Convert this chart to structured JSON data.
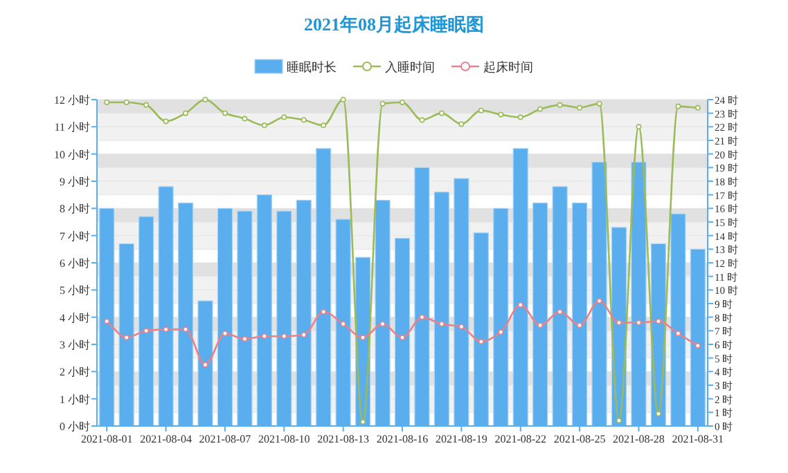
{
  "chart_data": {
    "type": "bar",
    "title": "2021年08月起床睡眠图",
    "categories": [
      "2021-08-01",
      null,
      null,
      "2021-08-04",
      null,
      null,
      "2021-08-07",
      null,
      null,
      "2021-08-10",
      null,
      null,
      "2021-08-13",
      null,
      null,
      "2021-08-16",
      null,
      null,
      "2021-08-19",
      null,
      null,
      "2021-08-22",
      null,
      null,
      "2021-08-25",
      null,
      null,
      "2021-08-28",
      null,
      null,
      "2021-08-31"
    ],
    "series": [
      {
        "name": "睡眠时长",
        "color": "#5aaeed",
        "values": [
          8.0,
          6.7,
          7.7,
          8.8,
          8.2,
          4.6,
          8.0,
          7.9,
          8.5,
          7.9,
          8.3,
          10.2,
          7.6,
          6.2,
          8.3,
          6.9,
          9.5,
          8.6,
          9.1,
          7.1,
          8.0,
          10.2,
          8.2,
          8.8,
          8.2,
          9.7,
          7.3,
          9.7,
          6.7,
          7.8,
          6.5
        ]
      },
      {
        "name": "入睡时间",
        "type": "line",
        "axis": "y2",
        "color": "#9bbb59",
        "values": [
          23.8,
          23.8,
          23.6,
          22.4,
          23.0,
          24.0,
          23.0,
          22.6,
          22.1,
          22.7,
          22.5,
          22.1,
          24.0,
          0.3,
          23.7,
          23.8,
          22.5,
          23.0,
          22.2,
          23.2,
          22.9,
          22.7,
          23.3,
          23.6,
          23.4,
          23.7,
          0.4,
          22.0,
          0.9,
          23.5,
          23.4
        ]
      },
      {
        "name": "起床时间",
        "type": "line",
        "axis": "y2",
        "color": "#e8828a",
        "values": [
          7.7,
          6.5,
          7.0,
          7.1,
          7.1,
          4.5,
          6.8,
          6.4,
          6.6,
          6.6,
          6.7,
          8.4,
          7.5,
          6.5,
          7.5,
          6.5,
          8.0,
          7.5,
          7.3,
          6.2,
          6.9,
          8.9,
          7.4,
          8.4,
          7.4,
          9.2,
          7.6,
          7.6,
          7.7,
          6.8,
          5.9
        ]
      }
    ],
    "ylim": [
      0,
      12
    ],
    "yticks": [
      {
        "value": 0,
        "label": "0 小时"
      },
      {
        "value": 1,
        "label": "1 小时"
      },
      {
        "value": 2,
        "label": "2 小时"
      },
      {
        "value": 3,
        "label": "3 小时"
      },
      {
        "value": 4,
        "label": "4 小时"
      },
      {
        "value": 5,
        "label": "5 小时"
      },
      {
        "value": 6,
        "label": "6 小时"
      },
      {
        "value": 7,
        "label": "7 小时"
      },
      {
        "value": 8,
        "label": "8 小时"
      },
      {
        "value": 9,
        "label": "9 小时"
      },
      {
        "value": 10,
        "label": "10 小时"
      },
      {
        "value": 11,
        "label": "11 小时"
      },
      {
        "value": 12,
        "label": "12 小时"
      }
    ],
    "y2lim": [
      0,
      24
    ],
    "y2ticks": [
      {
        "value": 0,
        "label": "0 时"
      },
      {
        "value": 1,
        "label": "1 时"
      },
      {
        "value": 2,
        "label": "2 时"
      },
      {
        "value": 3,
        "label": "3 时"
      },
      {
        "value": 4,
        "label": "4 时"
      },
      {
        "value": 5,
        "label": "5 时"
      },
      {
        "value": 6,
        "label": "6 时"
      },
      {
        "value": 7,
        "label": "7 时"
      },
      {
        "value": 8,
        "label": "8 时"
      },
      {
        "value": 9,
        "label": "9 时"
      },
      {
        "value": 10,
        "label": "10 时"
      },
      {
        "value": 11,
        "label": "11 时"
      },
      {
        "value": 12,
        "label": "12 时"
      },
      {
        "value": 13,
        "label": "13 时"
      },
      {
        "value": 14,
        "label": "14 时"
      },
      {
        "value": 15,
        "label": "15 时"
      },
      {
        "value": 16,
        "label": "16 时"
      },
      {
        "value": 17,
        "label": "17 时"
      },
      {
        "value": 18,
        "label": "18 时"
      },
      {
        "value": 19,
        "label": "19 时"
      },
      {
        "value": 20,
        "label": "20 时"
      },
      {
        "value": 21,
        "label": "21 时"
      },
      {
        "value": 22,
        "label": "22 时"
      },
      {
        "value": 23,
        "label": "23 时"
      },
      {
        "value": 24,
        "label": "24 时"
      }
    ],
    "grid": true,
    "legend": "top",
    "marker": "circle",
    "line_style": "solid"
  }
}
